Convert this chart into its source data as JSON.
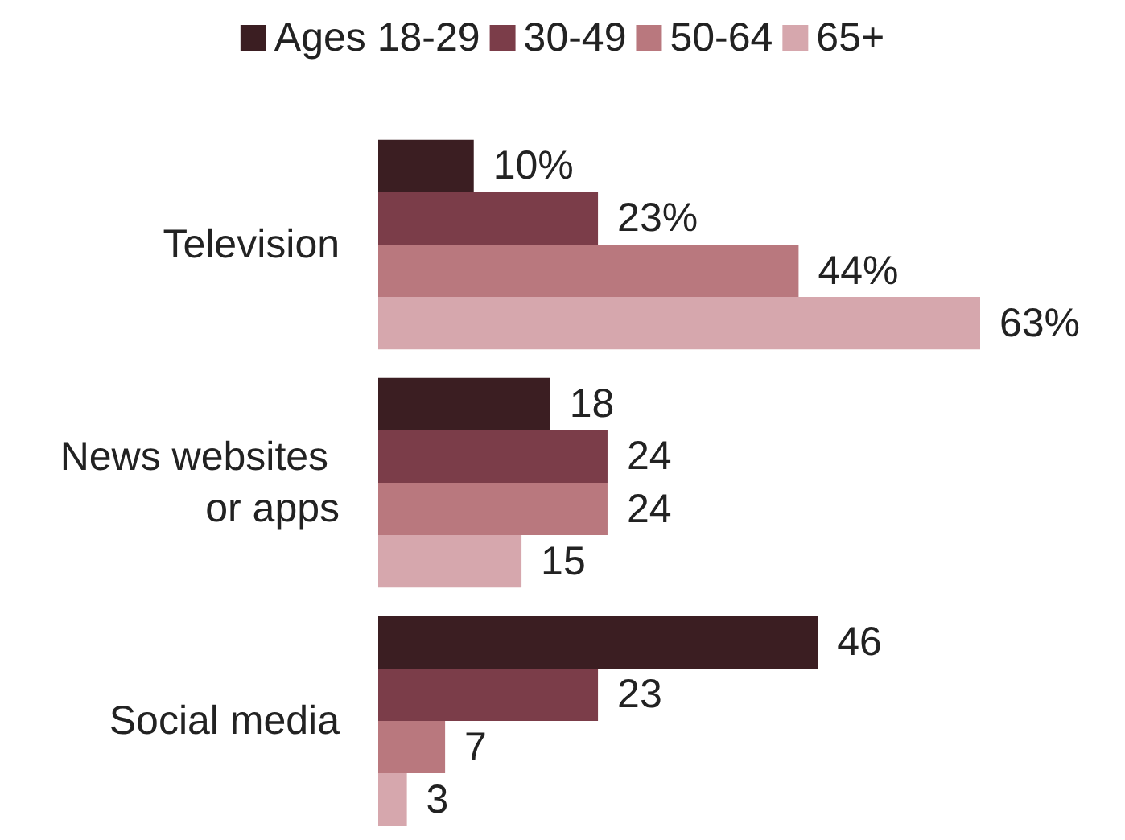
{
  "chart_data": {
    "type": "bar",
    "orientation": "horizontal",
    "categories": [
      "Television",
      "News websites or apps",
      "Social media"
    ],
    "series": [
      {
        "name": "Ages 18-29",
        "color": "#3b1e22",
        "values": [
          10,
          18,
          46
        ],
        "value_labels": [
          "10%",
          "18",
          "46"
        ]
      },
      {
        "name": "30-49",
        "color": "#7b3d49",
        "values": [
          23,
          24,
          23
        ],
        "value_labels": [
          "23%",
          "24",
          "23"
        ]
      },
      {
        "name": "50-64",
        "color": "#b9787e",
        "values": [
          44,
          24,
          7
        ],
        "value_labels": [
          "44%",
          "24",
          "7"
        ]
      },
      {
        "name": "65+",
        "color": "#d6a7ad",
        "values": [
          63,
          15,
          3
        ],
        "value_labels": [
          "63%",
          "15",
          "3"
        ]
      }
    ],
    "legend": "top"
  }
}
